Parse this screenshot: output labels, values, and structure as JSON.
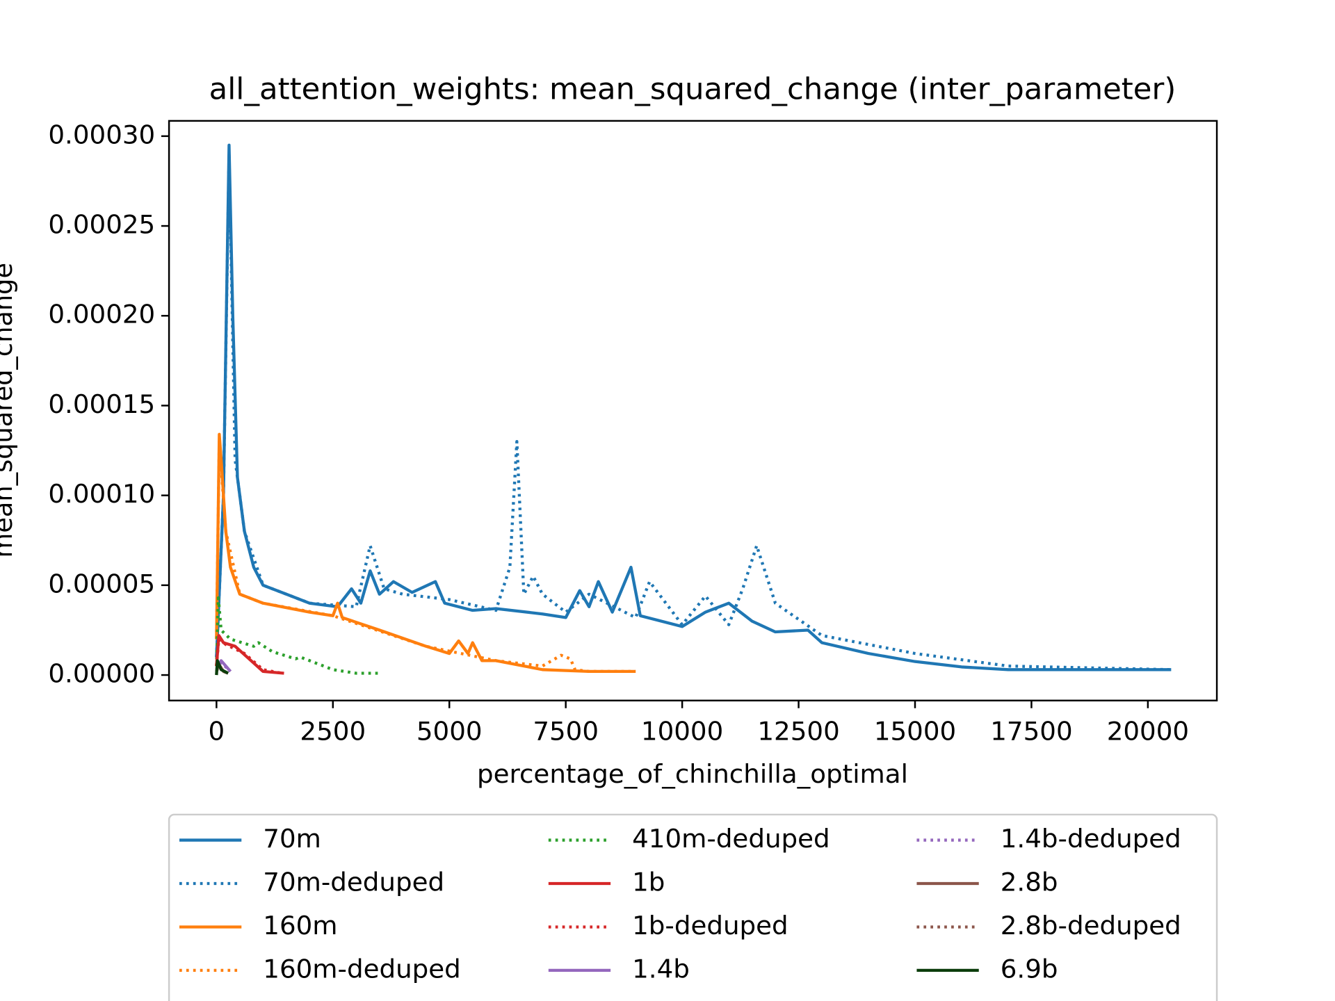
{
  "chart_data": {
    "type": "line",
    "title": "all_attention_weights: mean_squared_change (inter_parameter)",
    "xlabel": "percentage_of_chinchilla_optimal",
    "ylabel": "mean_squared_change",
    "xlim": [
      -1019,
      21481
    ],
    "ylim": [
      -1.42e-05,
      0.0003085
    ],
    "xticks": [
      0,
      2500,
      5000,
      7500,
      10000,
      12500,
      15000,
      17500,
      20000
    ],
    "yticks": [
      {
        "value": 0,
        "label": "0.00000"
      },
      {
        "value": 5e-05,
        "label": "0.00005"
      },
      {
        "value": 0.0001,
        "label": "0.00010"
      },
      {
        "value": 0.00015,
        "label": "0.00015"
      },
      {
        "value": 0.0002,
        "label": "0.00020"
      },
      {
        "value": 0.00025,
        "label": "0.00025"
      },
      {
        "value": 0.0003,
        "label": "0.00030"
      }
    ],
    "legend": "below",
    "series": [
      {
        "name": "70m",
        "color": "#1f77b4",
        "style": "solid",
        "x": [
          0,
          150,
          270,
          350,
          450,
          600,
          800,
          1000,
          1500,
          2000,
          2600,
          2900,
          3100,
          3300,
          3500,
          3800,
          4200,
          4700,
          4900,
          5500,
          6000,
          7000,
          7500,
          7800,
          8000,
          8200,
          8500,
          8900,
          9100,
          10000,
          10500,
          11000,
          11500,
          12000,
          12700,
          13000,
          14000,
          15000,
          16000,
          17000,
          20500
        ],
        "values": [
          1e-05,
          0.0001,
          0.000295,
          0.0002,
          0.00011,
          8e-05,
          6e-05,
          5e-05,
          4.5e-05,
          4e-05,
          3.8e-05,
          4.8e-05,
          4e-05,
          5.8e-05,
          4.5e-05,
          5.2e-05,
          4.6e-05,
          5.2e-05,
          4e-05,
          3.6e-05,
          3.7e-05,
          3.4e-05,
          3.2e-05,
          4.7e-05,
          3.8e-05,
          5.2e-05,
          3.5e-05,
          6e-05,
          3.3e-05,
          2.7e-05,
          3.5e-05,
          4e-05,
          3e-05,
          2.4e-05,
          2.5e-05,
          1.8e-05,
          1.2e-05,
          7.5e-06,
          4.5e-06,
          3e-06,
          3e-06
        ]
      },
      {
        "name": "70m-deduped",
        "color": "#1f77b4",
        "style": "dotted",
        "x": [
          0,
          150,
          270,
          400,
          600,
          1000,
          2000,
          3000,
          3300,
          3600,
          4000,
          5000,
          6000,
          6300,
          6450,
          6600,
          6800,
          7000,
          7500,
          8000,
          9000,
          9300,
          10000,
          10500,
          11000,
          11300,
          11600,
          12000,
          13000,
          15000,
          17000,
          20500
        ],
        "values": [
          1e-05,
          0.0001,
          0.00029,
          0.00012,
          8e-05,
          5e-05,
          4e-05,
          3.8e-05,
          7.2e-05,
          4.8e-05,
          4.5e-05,
          4.2e-05,
          3.6e-05,
          6e-05,
          0.00013,
          4.5e-05,
          5.5e-05,
          4.5e-05,
          3.5e-05,
          4.5e-05,
          3.2e-05,
          5.2e-05,
          2.8e-05,
          4.4e-05,
          2.8e-05,
          4.8e-05,
          7.2e-05,
          4e-05,
          2.2e-05,
          1.2e-05,
          5e-06,
          3e-06
        ]
      },
      {
        "name": "160m",
        "color": "#ff7f0e",
        "style": "solid",
        "x": [
          0,
          60,
          100,
          200,
          300,
          500,
          1000,
          2000,
          2500,
          2600,
          2700,
          3500,
          4500,
          5000,
          5200,
          5400,
          5500,
          5700,
          6000,
          7000,
          8000,
          9000
        ],
        "values": [
          2e-05,
          0.000134,
          0.00012,
          8e-05,
          6e-05,
          4.5e-05,
          4e-05,
          3.5e-05,
          3.3e-05,
          4e-05,
          3.2e-05,
          2.5e-05,
          1.6e-05,
          1.2e-05,
          1.9e-05,
          1.2e-05,
          1.8e-05,
          8e-06,
          8e-06,
          3e-06,
          2e-06,
          2e-06
        ]
      },
      {
        "name": "160m-deduped",
        "color": "#ff7f0e",
        "style": "dotted",
        "x": [
          0,
          60,
          200,
          500,
          1000,
          2500,
          4500,
          6000,
          7000,
          7400,
          7600,
          7700,
          8000,
          9000
        ],
        "values": [
          2e-05,
          0.00013,
          8e-05,
          4.5e-05,
          4e-05,
          3.3e-05,
          1.6e-05,
          8e-06,
          5e-06,
          1.1e-05,
          9e-06,
          3e-06,
          2e-06,
          2e-06
        ]
      },
      {
        "name": "410m-deduped",
        "color": "#2ca02c",
        "style": "dotted",
        "x": [
          0,
          40,
          100,
          300,
          800,
          900,
          1200,
          1700,
          1800,
          2500,
          3000,
          3500
        ],
        "values": [
          5e-06,
          4.3e-05,
          2.5e-05,
          2e-05,
          1.6e-05,
          1.8e-05,
          1.3e-05,
          9e-06,
          1e-05,
          3e-06,
          1e-06,
          1e-06
        ]
      },
      {
        "name": "1b",
        "color": "#d62728",
        "style": "solid",
        "x": [
          0,
          50,
          150,
          400,
          700,
          1000,
          1450
        ],
        "values": [
          5e-06,
          2.2e-05,
          1.8e-05,
          1.6e-05,
          9e-06,
          2e-06,
          1e-06
        ]
      },
      {
        "name": "1b-deduped",
        "color": "#d62728",
        "style": "dotted",
        "x": [
          0,
          50,
          200,
          600,
          1000,
          1400
        ],
        "values": [
          5e-06,
          2e-05,
          1.7e-05,
          1.2e-05,
          3e-06,
          1e-06
        ]
      },
      {
        "name": "1.4b",
        "color": "#9467bd",
        "style": "solid",
        "x": [
          0,
          100,
          300
        ],
        "values": [
          3e-06,
          8e-06,
          2e-06
        ]
      },
      {
        "name": "1.4b-deduped",
        "color": "#9467bd",
        "style": "dotted",
        "x": [
          0,
          100,
          300
        ],
        "values": [
          3e-06,
          7e-06,
          2e-06
        ]
      },
      {
        "name": "2.8b",
        "color": "#8c564b",
        "style": "solid",
        "x": [
          0,
          50,
          150,
          250
        ],
        "values": [
          2e-06,
          6e-06,
          2e-06,
          1e-06
        ]
      },
      {
        "name": "2.8b-deduped",
        "color": "#8c564b",
        "style": "dotted",
        "x": [
          0,
          50,
          150,
          250
        ],
        "values": [
          2e-06,
          5e-06,
          2e-06,
          1e-06
        ]
      },
      {
        "name": "6.9b",
        "color": "#0b3d0b",
        "style": "solid",
        "x": [
          0,
          20,
          100,
          250
        ],
        "values": [
          0,
          8e-06,
          3e-06,
          1e-06
        ]
      }
    ]
  }
}
